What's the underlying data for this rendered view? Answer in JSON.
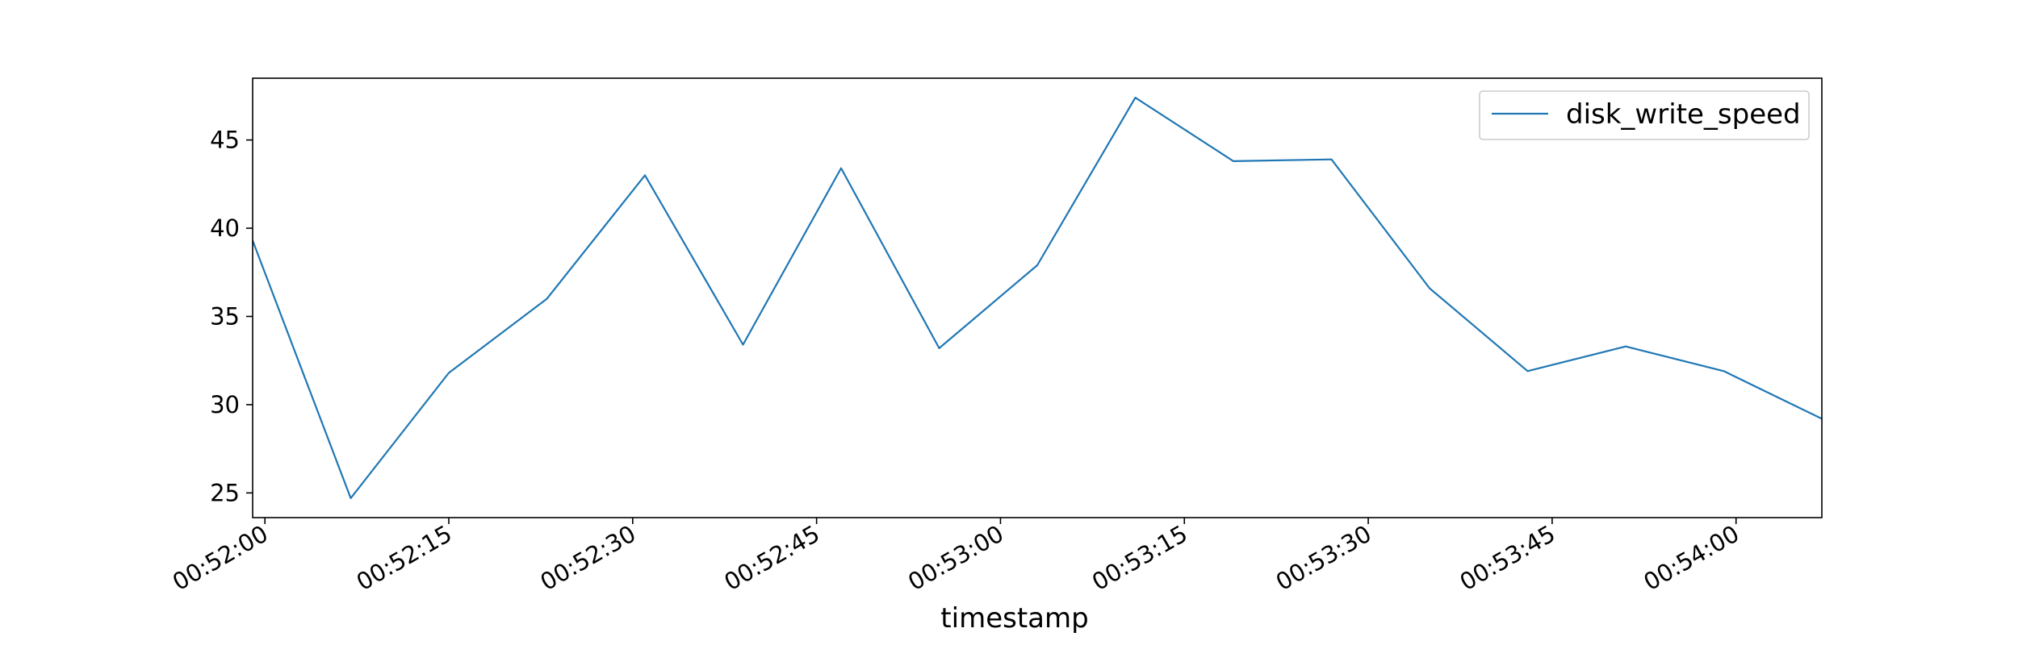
{
  "chart_data": {
    "type": "line",
    "title": "",
    "xlabel": "timestamp",
    "ylabel": "",
    "grid": false,
    "legend_position": "top-right",
    "series": [
      {
        "name": "disk_write_speed",
        "color": "#1f77b4",
        "x": [
          "00:51:59",
          "00:52:07",
          "00:52:15",
          "00:52:23",
          "00:52:31",
          "00:52:39",
          "00:52:47",
          "00:52:55",
          "00:53:03",
          "00:53:11",
          "00:53:19",
          "00:53:27",
          "00:53:35",
          "00:53:43",
          "00:53:51",
          "00:53:59",
          "00:54:07"
        ],
        "values": [
          39.3,
          24.7,
          31.8,
          36.0,
          43.0,
          33.4,
          43.4,
          33.2,
          37.9,
          47.4,
          43.8,
          43.9,
          36.6,
          31.9,
          33.3,
          31.9,
          29.2
        ]
      }
    ],
    "xlim": [
      "00:51:59",
      "00:54:07"
    ],
    "ylim": [
      23.6,
      48.5
    ],
    "x_ticks": [
      "00:52:00",
      "00:52:15",
      "00:52:30",
      "00:52:45",
      "00:53:00",
      "00:53:15",
      "00:53:30",
      "00:53:45",
      "00:54:00"
    ],
    "y_ticks": [
      25,
      30,
      35,
      40,
      45
    ]
  }
}
